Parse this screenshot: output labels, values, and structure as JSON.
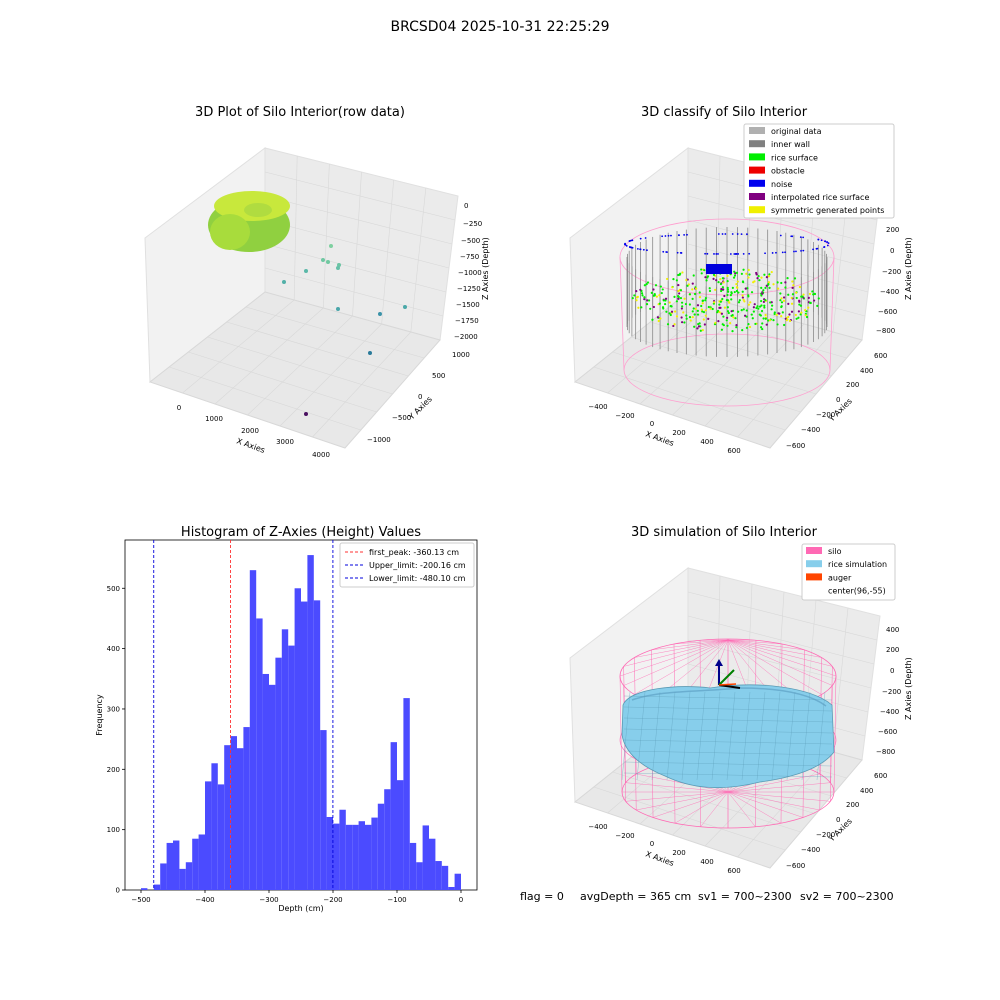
{
  "suptitle": "BRCSD04 2025-10-31 22:25:29",
  "panels": {
    "raw": {
      "title": "3D Plot of Silo Interior(row data)",
      "xlabel": "X Axies",
      "ylabel": "Y Axies",
      "zlabel": "Z Axies (Depth)",
      "xticks": [
        "0",
        "1000",
        "2000",
        "3000",
        "4000"
      ],
      "yticks": [
        "1000",
        "500",
        "0",
        "−500",
        "−1000"
      ],
      "zticks": [
        "0",
        "−250",
        "−500",
        "−750",
        "−1000",
        "−1250",
        "−1500",
        "−1750",
        "−2000"
      ]
    },
    "classify": {
      "title": "3D classify of Silo Interior",
      "xlabel": "X Axies",
      "ylabel": "Y Axies",
      "zlabel": "Z Axies (Depth)",
      "xticks": [
        "−400",
        "−200",
        "0",
        "200",
        "400",
        "600"
      ],
      "yticks": [
        "600",
        "400",
        "200",
        "0",
        "−200",
        "−400",
        "−600"
      ],
      "zticks": [
        "200",
        "0",
        "−200",
        "−400",
        "−600",
        "−800"
      ],
      "legend": [
        {
          "label": "original data",
          "color": "#b0b0b0"
        },
        {
          "label": "inner wall",
          "color": "#808080"
        },
        {
          "label": "rice surface",
          "color": "#00ee00"
        },
        {
          "label": "obstacle",
          "color": "#ee0000"
        },
        {
          "label": "noise",
          "color": "#0000ee"
        },
        {
          "label": "interpolated rice surface",
          "color": "#800080"
        },
        {
          "label": "symmetric generated points",
          "color": "#f0f000"
        }
      ]
    },
    "simulation": {
      "title": "3D simulation of Silo Interior",
      "xlabel": "X Axies",
      "ylabel": "Y Axies",
      "zlabel": "Z Axies (Depth)",
      "xticks": [
        "−400",
        "−200",
        "0",
        "200",
        "400",
        "600"
      ],
      "yticks": [
        "600",
        "400",
        "200",
        "0",
        "−200",
        "−400",
        "−600"
      ],
      "zticks": [
        "400",
        "200",
        "0",
        "−200",
        "−400",
        "−600",
        "−800"
      ],
      "legend": [
        {
          "label": "silo",
          "color": "#ff69b4"
        },
        {
          "label": "rice simulation",
          "color": "#87ceeb"
        },
        {
          "label": "auger",
          "color": "#ff4500"
        },
        {
          "label": "center(96,-55)",
          "color": "#ffffff"
        }
      ]
    }
  },
  "chart_data": {
    "type": "bar",
    "title": "Histogram of Z-Axies (Height) Values",
    "xlabel": "Depth (cm)",
    "ylabel": "Frequency",
    "xlim": [
      -525,
      25
    ],
    "ylim": [
      0,
      580
    ],
    "xticks": [
      -500,
      -400,
      -300,
      -200,
      -100,
      0
    ],
    "xtick_labels": [
      "−500",
      "−400",
      "−300",
      "−200",
      "−100",
      "0"
    ],
    "yticks": [
      0,
      100,
      200,
      300,
      400,
      500
    ],
    "bin_start": -500,
    "bin_width": 10,
    "values": [
      3,
      0,
      9,
      44,
      78,
      82,
      35,
      46,
      85,
      92,
      180,
      210,
      175,
      240,
      255,
      235,
      270,
      530,
      450,
      358,
      340,
      385,
      432,
      405,
      500,
      478,
      555,
      480,
      265,
      121,
      110,
      133,
      108,
      108,
      114,
      108,
      120,
      143,
      167,
      245,
      182,
      318,
      78,
      46,
      107,
      85,
      48,
      40,
      5,
      27
    ],
    "bar_color": "#4b4bff",
    "vlines": [
      {
        "label": "first_peak: -360.13 cm",
        "x": -360.13,
        "color": "#ff3030"
      },
      {
        "label": "Upper_limit: -200.16 cm",
        "x": -200.16,
        "color": "#0000dd"
      },
      {
        "label": "Lower_limit: -480.10 cm",
        "x": -480.1,
        "color": "#0000dd"
      }
    ]
  },
  "status": {
    "flag": "flag = 0",
    "avg": "avgDepth = 365 cm",
    "sv1": "sv1 = 700~2300",
    "sv2": "sv2 = 700~2300"
  }
}
